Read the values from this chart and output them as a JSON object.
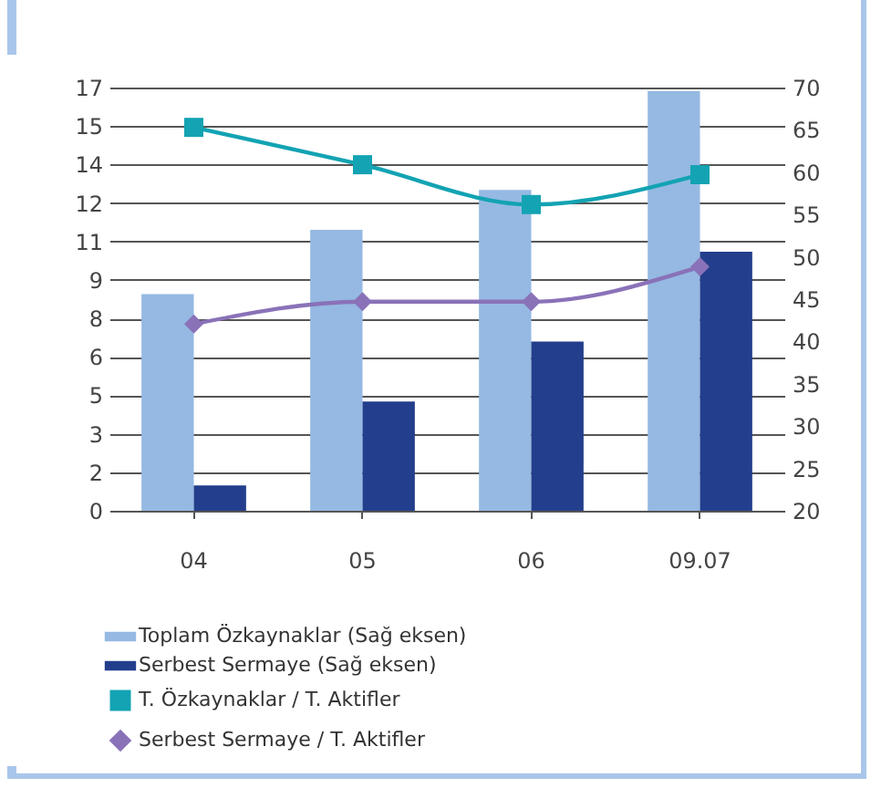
{
  "chart_data": {
    "type": "bar",
    "categories": [
      "04",
      "05",
      "06",
      "09.07"
    ],
    "series": [
      {
        "name": "Toplam Özkaynaklar (Sağ eksen)",
        "axis": "y2",
        "color": "#95b9e2",
        "values": [
          45.6,
          53.2,
          57.9,
          69.6
        ]
      },
      {
        "name": "Serbest Sermaye (Sağ eksen)",
        "axis": "y2",
        "color": "#233e8c",
        "values": [
          23.0,
          32.9,
          40.0,
          50.6
        ]
      },
      {
        "name": "T. Özkaynaklar / T. Aktifler",
        "type": "line",
        "marker": "square",
        "color": "#13a3b3",
        "values": [
          15.4,
          13.9,
          12.3,
          13.5
        ]
      },
      {
        "name": "Serbest Sermaye / T. Aktifler",
        "type": "line",
        "marker": "diamond",
        "color": "#8a72b8",
        "values": [
          7.5,
          8.4,
          8.4,
          9.8
        ]
      }
    ],
    "ylim": [
      0,
      17
    ],
    "yticks": [
      0,
      {
        "value": 1.545,
        "label": "2"
      },
      {
        "value": 3.091,
        "label": "3"
      },
      {
        "value": 4.636,
        "label": "5"
      },
      {
        "value": 6.182,
        "label": "6"
      },
      {
        "value": 7.727,
        "label": "8"
      },
      {
        "value": 9.273,
        "label": "9"
      },
      {
        "value": 10.818,
        "label": "11"
      },
      {
        "value": 12.364,
        "label": "12"
      },
      {
        "value": 13.909,
        "label": "14"
      },
      {
        "value": 15.455,
        "label": "15"
      },
      17
    ],
    "y2lim": [
      20,
      70
    ],
    "y2ticks": [
      20,
      25,
      30,
      35,
      40,
      45,
      50,
      55,
      60,
      65,
      70
    ],
    "grid": "y",
    "legend": "bottom"
  }
}
